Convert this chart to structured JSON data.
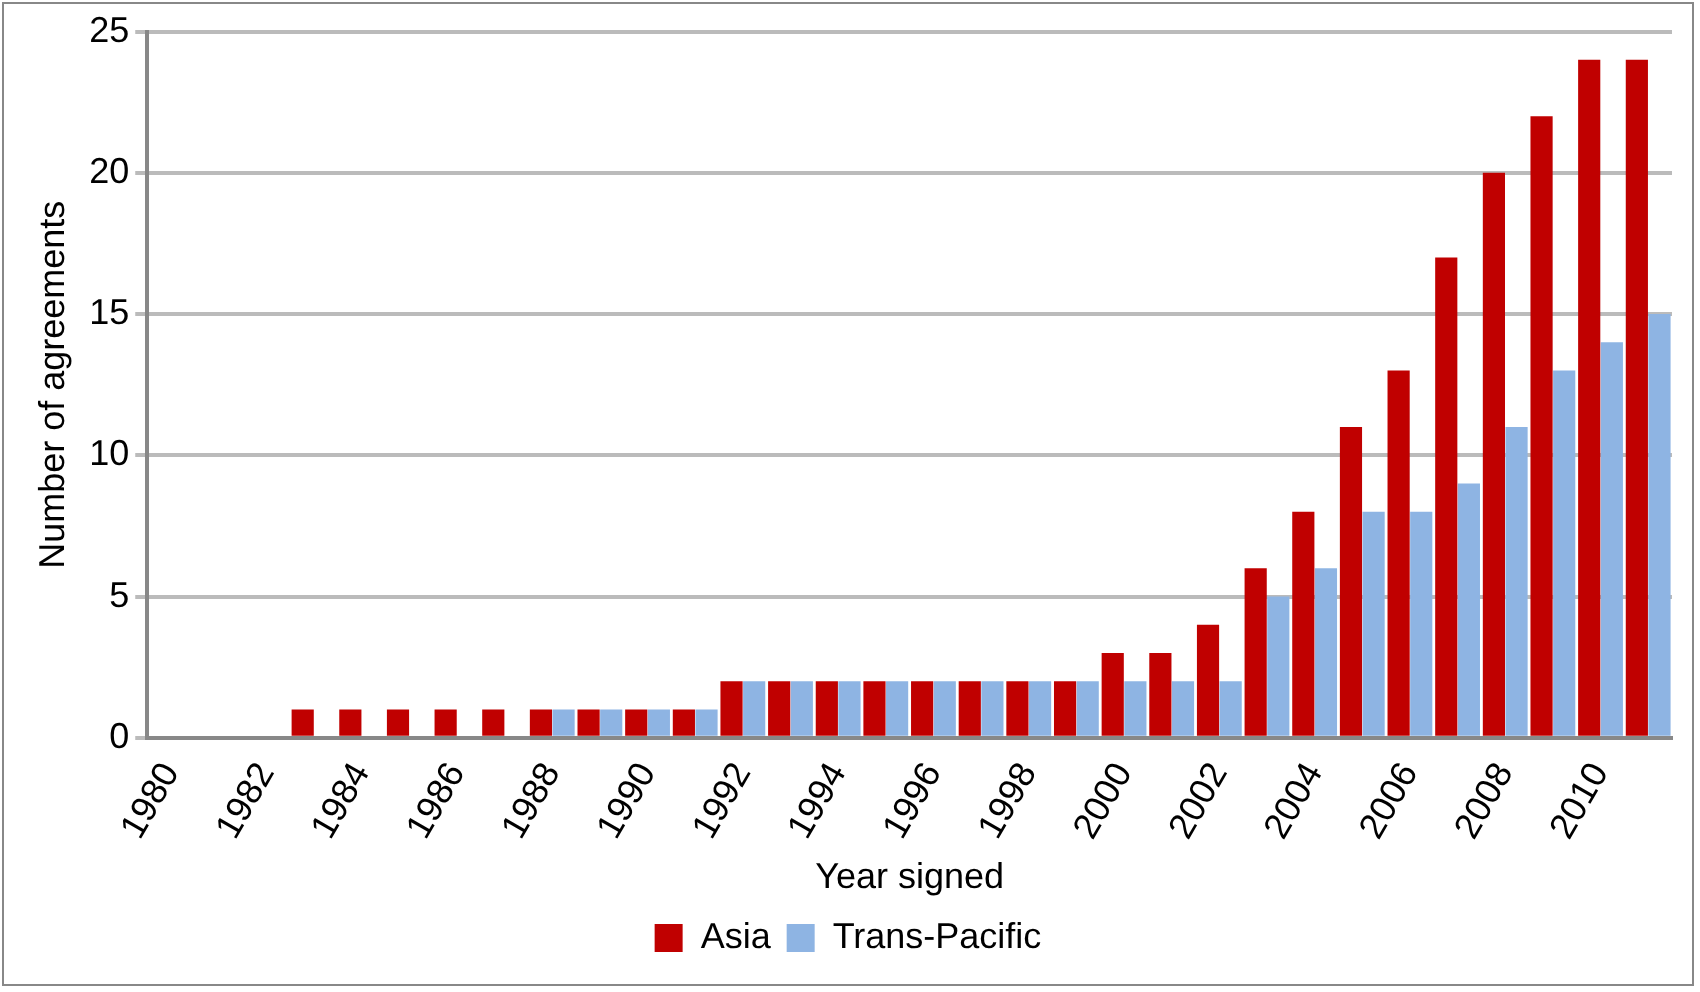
{
  "chart_data": {
    "type": "bar",
    "xlabel": "Year signed",
    "ylabel": "Number of agreements",
    "categories": [
      "1980",
      null,
      "1982",
      null,
      "1984",
      null,
      "1986",
      null,
      "1988",
      null,
      "1990",
      null,
      "1992",
      null,
      "1994",
      null,
      "1996",
      null,
      "1998",
      null,
      "2000",
      null,
      "2002",
      null,
      "2004",
      null,
      "2006",
      null,
      "2008",
      null,
      "2010",
      null
    ],
    "series": [
      {
        "name": "Asia",
        "color": "#c00000",
        "values": [
          0,
          0,
          0,
          1,
          1,
          1,
          1,
          1,
          1,
          1,
          1,
          1,
          2,
          2,
          2,
          2,
          2,
          2,
          2,
          2,
          3,
          3,
          4,
          6,
          8,
          11,
          13,
          17,
          20,
          22,
          24,
          24
        ]
      },
      {
        "name": "Trans-Pacific",
        "color": "#8eb4e3",
        "values": [
          0,
          0,
          0,
          0,
          0,
          0,
          0,
          0,
          1,
          1,
          1,
          1,
          2,
          2,
          2,
          2,
          2,
          2,
          2,
          2,
          2,
          2,
          2,
          5,
          6,
          8,
          8,
          9,
          11,
          13,
          14,
          15
        ]
      }
    ],
    "ylim": [
      0,
      25
    ],
    "yticks": [
      0,
      5,
      10,
      15,
      20,
      25
    ],
    "grid": "y",
    "legend": "bottom"
  }
}
